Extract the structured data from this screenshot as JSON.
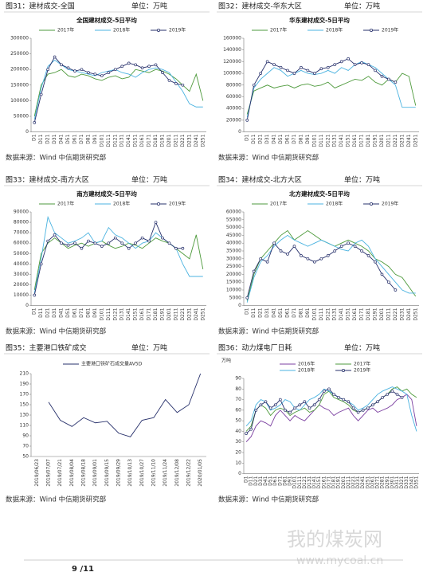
{
  "chart_data": [
    {
      "type": "line",
      "caption": "图31：建材成交-全国",
      "unit": "单位：万吨",
      "title": "全国建材成交-5日平均",
      "source": "数据来源：Wind  中信期货研究部",
      "categories": [
        "D1",
        "D11",
        "D21",
        "D31",
        "D41",
        "D51",
        "D61",
        "D71",
        "D81",
        "D91",
        "D101",
        "D111",
        "D121",
        "D131",
        "D141",
        "D151",
        "D161",
        "D171",
        "D181",
        "D191",
        "D201",
        "D211",
        "D221",
        "D231",
        "D241",
        "D251"
      ],
      "ylim": [
        0,
        300000
      ],
      "yticks": [
        0,
        50000,
        100000,
        150000,
        200000,
        250000,
        300000
      ],
      "series": [
        {
          "name": "2017年",
          "color": "#4e9a3c",
          "values": [
            50000,
            150000,
            185000,
            190000,
            200000,
            180000,
            175000,
            185000,
            180000,
            170000,
            165000,
            175000,
            180000,
            170000,
            175000,
            200000,
            195000,
            190000,
            200000,
            195000,
            185000,
            170000,
            150000,
            130000,
            185000,
            100000
          ]
        },
        {
          "name": "2018年",
          "color": "#4bb3e0",
          "values": [
            40000,
            140000,
            210000,
            230000,
            215000,
            200000,
            195000,
            190000,
            185000,
            180000,
            190000,
            195000,
            200000,
            190000,
            185000,
            175000,
            190000,
            200000,
            205000,
            200000,
            190000,
            160000,
            130000,
            90000,
            80000,
            80000
          ]
        },
        {
          "name": "2019年",
          "color": "#27306b",
          "markers": true,
          "values": [
            30000,
            120000,
            200000,
            240000,
            215000,
            205000,
            195000,
            200000,
            190000,
            185000,
            180000,
            190000,
            200000,
            210000,
            220000,
            215000,
            205000,
            210000,
            215000,
            190000,
            165000,
            155000,
            150000,
            null,
            null,
            null
          ]
        }
      ]
    },
    {
      "type": "line",
      "caption": "图32：建材成交-华东大区",
      "unit": "单位：万吨",
      "title": "华东建材成交-5日平均",
      "source": "数据来源：Wind  中信期货研究部",
      "categories": [
        "D1",
        "D11",
        "D21",
        "D31",
        "D41",
        "D51",
        "D61",
        "D71",
        "D81",
        "D91",
        "D101",
        "D111",
        "D121",
        "D131",
        "D141",
        "D151",
        "D161",
        "D171",
        "D181",
        "D191",
        "D201",
        "D211",
        "D221",
        "D231",
        "D241",
        "D251"
      ],
      "ylim": [
        0,
        160000
      ],
      "yticks": [
        0,
        20000,
        40000,
        60000,
        80000,
        100000,
        120000,
        140000,
        160000
      ],
      "series": [
        {
          "name": "2017年",
          "color": "#4e9a3c",
          "values": [
            30000,
            70000,
            75000,
            80000,
            75000,
            78000,
            80000,
            75000,
            80000,
            82000,
            78000,
            80000,
            85000,
            75000,
            80000,
            85000,
            90000,
            88000,
            95000,
            85000,
            80000,
            90000,
            85000,
            100000,
            95000,
            45000
          ]
        },
        {
          "name": "2018年",
          "color": "#4bb3e0",
          "values": [
            25000,
            75000,
            90000,
            100000,
            110000,
            105000,
            95000,
            100000,
            105000,
            100000,
            98000,
            100000,
            105000,
            100000,
            110000,
            105000,
            115000,
            120000,
            115000,
            110000,
            100000,
            90000,
            80000,
            42000,
            42000,
            42000
          ]
        },
        {
          "name": "2019年",
          "color": "#27306b",
          "markers": true,
          "values": [
            20000,
            80000,
            100000,
            120000,
            115000,
            110000,
            105000,
            100000,
            110000,
            105000,
            100000,
            108000,
            110000,
            115000,
            120000,
            125000,
            115000,
            118000,
            115000,
            105000,
            95000,
            90000,
            85000,
            null,
            null,
            null
          ]
        }
      ]
    },
    {
      "type": "line",
      "caption": "图33：建材成交-南方大区",
      "unit": "单位：万吨",
      "title": "南方建材成交-5日平均",
      "source": "数据来源：Wind  中信期货研究部",
      "categories": [
        "D1",
        "D11",
        "D21",
        "D31",
        "D41",
        "D51",
        "D61",
        "D71",
        "D81",
        "D91",
        "D101",
        "D111",
        "D121",
        "D131",
        "D141",
        "D151",
        "D161",
        "D171",
        "D181",
        "D191",
        "D201",
        "D211",
        "D221",
        "D231",
        "D241",
        "D251"
      ],
      "ylim": [
        0,
        90000
      ],
      "yticks": [
        0,
        10000,
        20000,
        30000,
        40000,
        50000,
        60000,
        70000,
        80000,
        90000
      ],
      "series": [
        {
          "name": "2017年",
          "color": "#4e9a3c",
          "values": [
            15000,
            50000,
            60000,
            65000,
            60000,
            55000,
            58000,
            60000,
            57000,
            60000,
            62000,
            58000,
            55000,
            57000,
            60000,
            58000,
            55000,
            60000,
            65000,
            62000,
            60000,
            55000,
            50000,
            45000,
            68000,
            35000
          ]
        },
        {
          "name": "2018年",
          "color": "#4bb3e0",
          "values": [
            12000,
            45000,
            85000,
            70000,
            65000,
            60000,
            62000,
            65000,
            70000,
            60000,
            62000,
            75000,
            68000,
            65000,
            60000,
            55000,
            60000,
            62000,
            70000,
            65000,
            60000,
            55000,
            40000,
            28000,
            28000,
            28000
          ]
        },
        {
          "name": "2019年",
          "color": "#27306b",
          "markers": true,
          "values": [
            10000,
            40000,
            62000,
            68000,
            60000,
            58000,
            60000,
            55000,
            62000,
            60000,
            57000,
            60000,
            65000,
            60000,
            55000,
            60000,
            65000,
            62000,
            80000,
            65000,
            60000,
            55000,
            55000,
            null,
            null,
            null
          ]
        }
      ]
    },
    {
      "type": "line",
      "caption": "图34：建材成交-北方大区",
      "unit": "单位：万吨",
      "title": "北方建材成交-5日平均",
      "source": "数据来源：Wind  中信期货研究部",
      "categories": [
        "D1",
        "D11",
        "D21",
        "D31",
        "D41",
        "D51",
        "D61",
        "D71",
        "D81",
        "D91",
        "D101",
        "D111",
        "D121",
        "D131",
        "D141",
        "D151",
        "D161",
        "D171",
        "D181",
        "D191",
        "D201",
        "D211",
        "D221",
        "D231",
        "D241",
        "D251"
      ],
      "ylim": [
        0,
        60000
      ],
      "yticks": [
        0,
        5000,
        10000,
        15000,
        20000,
        25000,
        30000,
        35000,
        40000,
        45000,
        50000,
        55000,
        60000
      ],
      "series": [
        {
          "name": "2017年",
          "color": "#4e9a3c",
          "values": [
            3000,
            20000,
            30000,
            35000,
            40000,
            45000,
            48000,
            42000,
            45000,
            48000,
            45000,
            42000,
            40000,
            38000,
            40000,
            42000,
            40000,
            38000,
            35000,
            30000,
            28000,
            25000,
            20000,
            18000,
            12000,
            6000
          ]
        },
        {
          "name": "2018年",
          "color": "#4bb3e0",
          "values": [
            2000,
            18000,
            28000,
            32000,
            38000,
            42000,
            45000,
            42000,
            40000,
            38000,
            40000,
            42000,
            40000,
            38000,
            36000,
            35000,
            40000,
            42000,
            38000,
            30000,
            25000,
            20000,
            15000,
            10000,
            8000,
            8000
          ]
        },
        {
          "name": "2019年",
          "color": "#27306b",
          "markers": true,
          "values": [
            5000,
            22000,
            30000,
            28000,
            40000,
            35000,
            33000,
            38000,
            32000,
            30000,
            28000,
            30000,
            32000,
            35000,
            38000,
            40000,
            38000,
            35000,
            32000,
            28000,
            20000,
            15000,
            10000,
            null,
            null,
            null
          ]
        }
      ]
    },
    {
      "type": "line",
      "caption": "图35：主要港口铁矿成交",
      "unit": "单位：万吨",
      "source": "数据来源：Wind  中信期货研究部",
      "categories": [
        "2019/06/23",
        "2019/07/07",
        "2019/07/21",
        "2019/08/04",
        "2019/08/18",
        "2019/09/01",
        "2019/09/15",
        "2019/09/29",
        "2019/10/13",
        "2019/10/27",
        "2019/11/10",
        "2019/11/24",
        "2019/12/08",
        "2019/12/22",
        "2020/01/05"
      ],
      "ylim": [
        50,
        210
      ],
      "yticks": [
        50,
        70,
        90,
        110,
        130,
        150,
        170,
        190,
        210
      ],
      "series": [
        {
          "name": "主要港口铁矿石成交量AV5D",
          "color": "#27306b",
          "values": [
            null,
            155,
            120,
            108,
            125,
            115,
            118,
            95,
            88,
            120,
            125,
            160,
            135,
            150,
            210
          ]
        }
      ]
    },
    {
      "type": "line",
      "caption": "图36：动力煤电厂日耗",
      "unit": "单位：万吨",
      "y_unit": "万吨",
      "source": "数据来源：Wind  中信期货研究部",
      "categories": [
        "D1",
        "D11",
        "D21",
        "D31",
        "D41",
        "D51",
        "D61",
        "D71",
        "D81",
        "D91",
        "D101",
        "D111",
        "D121",
        "D131",
        "D141",
        "D151",
        "D161",
        "D171",
        "D181",
        "D191",
        "D201",
        "D211",
        "D221",
        "D231",
        "D241",
        "D251",
        "D261",
        "D271",
        "D281",
        "D291",
        "D301",
        "D311",
        "D321",
        "D331",
        "D341",
        "D351"
      ],
      "ylim": [
        0,
        90
      ],
      "yticks": [
        0,
        10,
        20,
        30,
        40,
        50,
        60,
        70,
        80,
        90
      ],
      "series": [
        {
          "name": "2016年",
          "color": "#7b3fa0",
          "values": [
            30,
            35,
            45,
            50,
            48,
            45,
            55,
            60,
            55,
            50,
            55,
            52,
            50,
            55,
            60,
            65,
            62,
            60,
            55,
            58,
            60,
            62,
            55,
            50,
            55,
            60,
            62,
            58,
            60,
            62,
            65,
            70,
            72,
            75,
            70,
            45
          ]
        },
        {
          "name": "2017年",
          "color": "#4e9a3c",
          "values": [
            40,
            45,
            60,
            65,
            62,
            55,
            60,
            62,
            60,
            55,
            58,
            60,
            62,
            58,
            60,
            65,
            75,
            78,
            72,
            70,
            68,
            65,
            60,
            58,
            60,
            62,
            65,
            68,
            72,
            75,
            80,
            82,
            78,
            80,
            75,
            72
          ]
        },
        {
          "name": "2018年",
          "color": "#4bb3e0",
          "values": [
            45,
            50,
            65,
            70,
            68,
            60,
            62,
            65,
            70,
            68,
            62,
            60,
            65,
            70,
            72,
            75,
            80,
            78,
            75,
            72,
            70,
            68,
            65,
            60,
            62,
            65,
            70,
            75,
            78,
            80,
            82,
            80,
            78,
            75,
            55,
            40
          ]
        },
        {
          "name": "2019年",
          "color": "#27306b",
          "markers": true,
          "values": [
            38,
            42,
            60,
            65,
            68,
            62,
            65,
            70,
            60,
            58,
            62,
            65,
            68,
            62,
            65,
            70,
            78,
            80,
            75,
            72,
            70,
            68,
            62,
            58,
            60,
            62,
            65,
            68,
            72,
            75,
            78,
            75,
            72,
            null,
            null,
            null
          ]
        }
      ]
    }
  ],
  "watermark": {
    "name": "我的煤炭网",
    "url": "www.mycoal.cn"
  },
  "page_number": "9 /11"
}
